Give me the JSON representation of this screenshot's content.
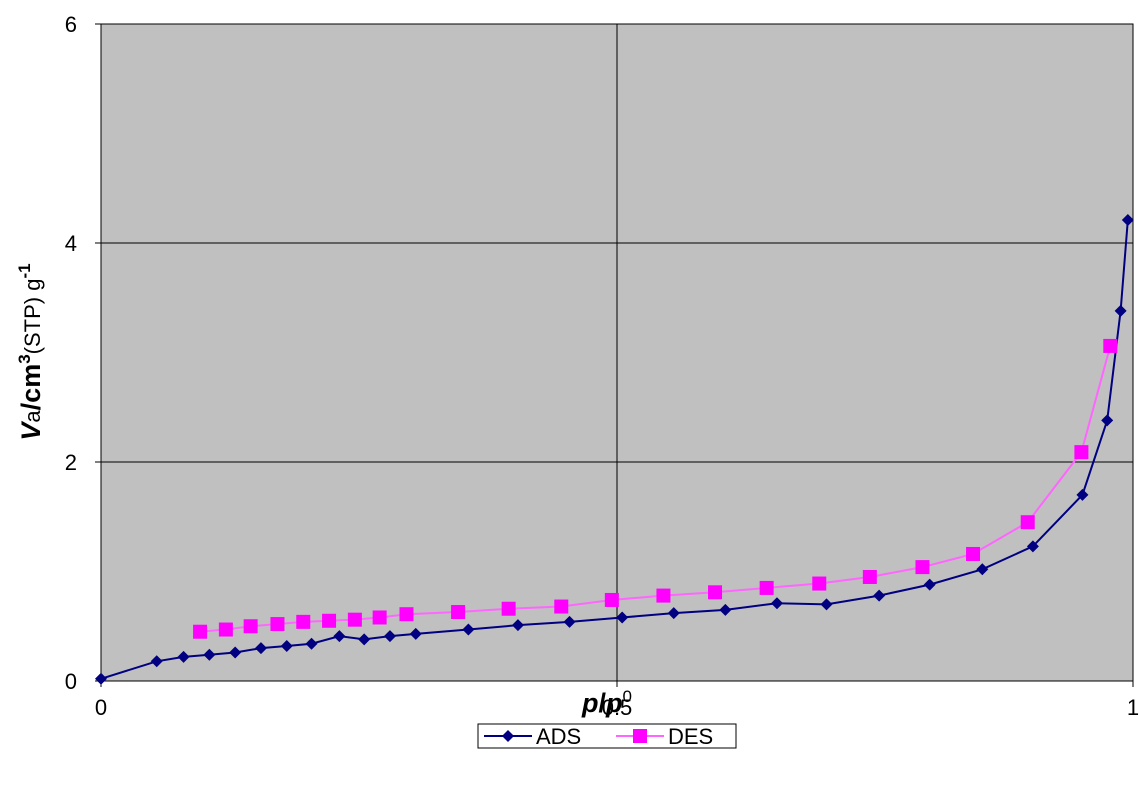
{
  "chart_data": {
    "type": "line",
    "xlabel_parts": [
      "p",
      "/",
      "p",
      "0"
    ],
    "ylabel_parts": [
      "V",
      "a",
      "/cm",
      "3",
      "(STP) g",
      "-1"
    ],
    "xlim": [
      0,
      1
    ],
    "xticks": [
      0,
      0.5,
      1
    ],
    "ylim": [
      0,
      6
    ],
    "yticks": [
      0,
      2,
      4,
      6
    ],
    "grid": true,
    "legend": "bottom",
    "series": [
      {
        "name": "ADS",
        "color": "#000080",
        "marker": "diamond",
        "x": [
          0,
          0.054,
          0.08,
          0.105,
          0.13,
          0.155,
          0.18,
          0.204,
          0.231,
          0.255,
          0.28,
          0.305,
          0.356,
          0.404,
          0.454,
          0.505,
          0.555,
          0.605,
          0.655,
          0.703,
          0.754,
          0.803,
          0.854,
          0.903,
          0.951,
          0.975,
          0.988,
          0.995
        ],
        "values": [
          0.02,
          0.18,
          0.22,
          0.24,
          0.26,
          0.3,
          0.32,
          0.34,
          0.41,
          0.38,
          0.41,
          0.43,
          0.47,
          0.51,
          0.54,
          0.58,
          0.62,
          0.65,
          0.71,
          0.7,
          0.78,
          0.88,
          1.02,
          1.23,
          1.7,
          2.38,
          3.38,
          4.21
        ]
      },
      {
        "name": "DES",
        "color": "#ff00ff",
        "marker": "square",
        "x": [
          0.096,
          0.121,
          0.145,
          0.171,
          0.196,
          0.221,
          0.246,
          0.27,
          0.296,
          0.346,
          0.395,
          0.446,
          0.495,
          0.545,
          0.595,
          0.645,
          0.696,
          0.745,
          0.796,
          0.845,
          0.898,
          0.95,
          0.978
        ],
        "values": [
          0.45,
          0.47,
          0.5,
          0.52,
          0.54,
          0.55,
          0.56,
          0.58,
          0.61,
          0.63,
          0.66,
          0.68,
          0.74,
          0.78,
          0.81,
          0.85,
          0.89,
          0.95,
          1.04,
          1.16,
          1.45,
          2.09,
          3.06
        ]
      }
    ]
  }
}
